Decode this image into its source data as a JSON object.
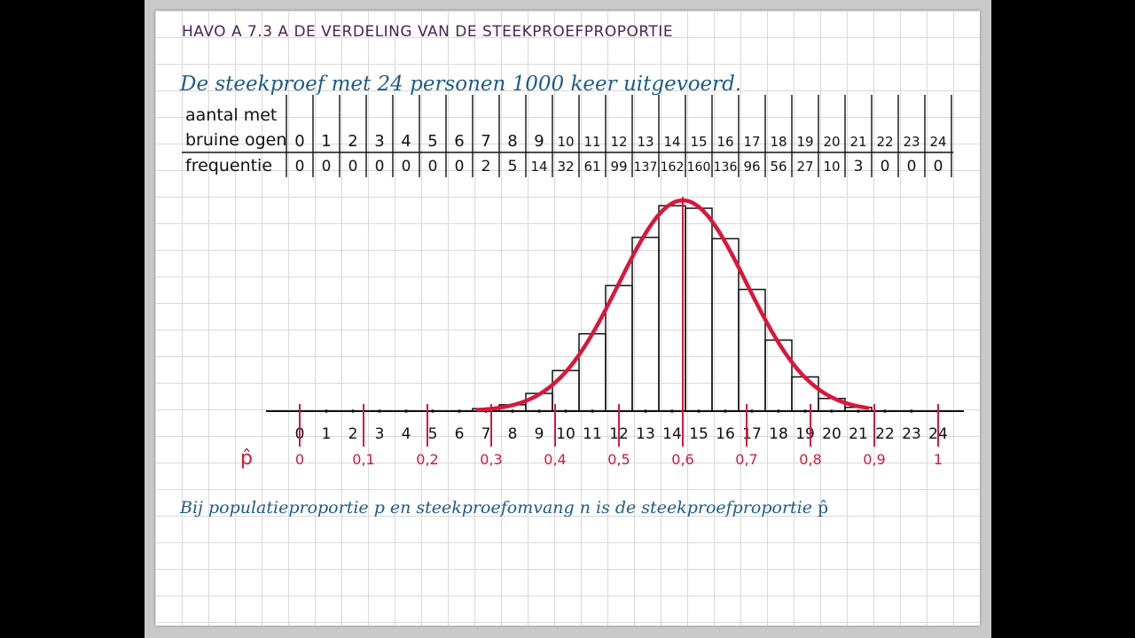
{
  "heading": "HAVO A 7.3 A DE VERDELING VAN DE STEEKPROEFPROPORTIE",
  "intro": "De steekproef met 24 personen 1000 keer uitgevoerd.",
  "table": {
    "row1_label_line1": "aantal met",
    "row1_label_line2": "bruine ogen",
    "row2_label": "frequentie"
  },
  "footer_text": "Bij populatieproportie p en steekproefomvang n is de steekproefproportie",
  "footer_symbol": "p̂",
  "colors": {
    "heading": "#4a2457",
    "blue_text": "#1f5b86",
    "red_curve": "#d8173c",
    "ink": "#111111"
  },
  "chart_data": {
    "type": "bar",
    "categories": [
      "0",
      "1",
      "2",
      "3",
      "4",
      "5",
      "6",
      "7",
      "8",
      "9",
      "10",
      "11",
      "12",
      "13",
      "14",
      "15",
      "16",
      "17",
      "18",
      "19",
      "20",
      "21",
      "22",
      "23",
      "24"
    ],
    "x": [
      0,
      1,
      2,
      3,
      4,
      5,
      6,
      7,
      8,
      9,
      10,
      11,
      12,
      13,
      14,
      15,
      16,
      17,
      18,
      19,
      20,
      21,
      22,
      23,
      24
    ],
    "values": [
      0,
      0,
      0,
      0,
      0,
      0,
      0,
      2,
      5,
      14,
      32,
      61,
      99,
      137,
      162,
      160,
      136,
      96,
      56,
      27,
      10,
      3,
      0,
      0,
      0
    ],
    "xlabel": "",
    "ylabel": "",
    "proportion_axis": {
      "label": "p̂",
      "ticks": [
        {
          "x": 0,
          "label": "0"
        },
        {
          "x": 2.4,
          "label": "0,1"
        },
        {
          "x": 4.8,
          "label": "0,2"
        },
        {
          "x": 7.2,
          "label": "0,3"
        },
        {
          "x": 9.6,
          "label": "0,4"
        },
        {
          "x": 12,
          "label": "0,5"
        },
        {
          "x": 14.4,
          "label": "0,6"
        },
        {
          "x": 16.8,
          "label": "0,7"
        },
        {
          "x": 19.2,
          "label": "0,8"
        },
        {
          "x": 21.6,
          "label": "0,9"
        },
        {
          "x": 24,
          "label": "1"
        }
      ]
    },
    "curve": {
      "type": "normal",
      "mean": 14.4,
      "sd": 2.4
    },
    "ylim": [
      0,
      170
    ],
    "grid": true
  }
}
